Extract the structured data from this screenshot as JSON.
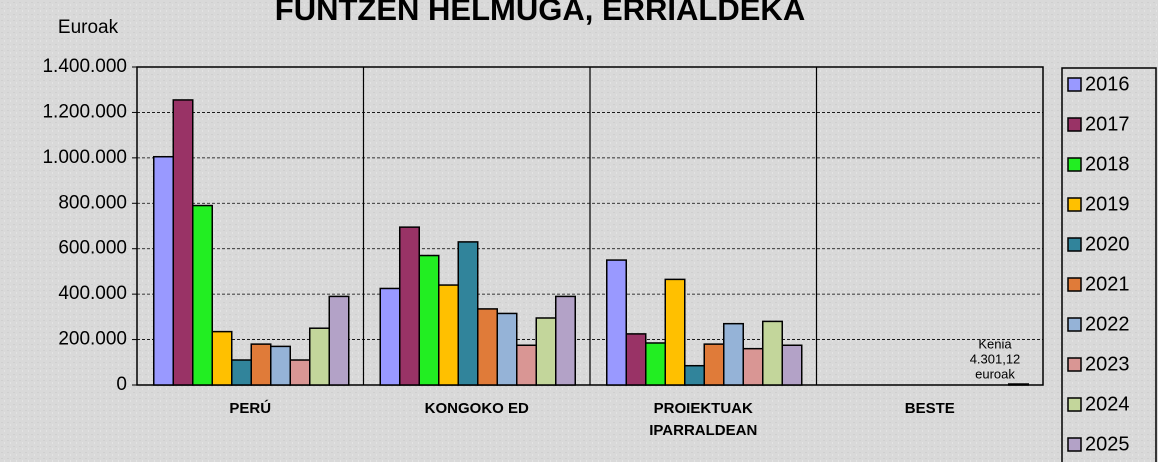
{
  "chart_data": {
    "type": "bar",
    "title": "FUNTZEN HELMUGA, ERRIALDEKA",
    "y_label": "Euroak",
    "categories": [
      "PERÚ",
      "KONGOKO ED",
      "PROIEKTUAK IPARRALDEAN",
      "BESTE"
    ],
    "series": [
      {
        "name": "2016",
        "color": "#9999ff",
        "values": [
          1005000,
          425000,
          550000,
          0
        ]
      },
      {
        "name": "2017",
        "color": "#993366",
        "values": [
          1255000,
          695000,
          225000,
          0
        ]
      },
      {
        "name": "2018",
        "color": "#22ee22",
        "values": [
          790000,
          570000,
          185000,
          0
        ]
      },
      {
        "name": "2019",
        "color": "#ffc000",
        "values": [
          235000,
          440000,
          465000,
          0
        ]
      },
      {
        "name": "2020",
        "color": "#31849b",
        "values": [
          110000,
          630000,
          85000,
          0
        ]
      },
      {
        "name": "2021",
        "color": "#e07b39",
        "values": [
          180000,
          335000,
          180000,
          0
        ]
      },
      {
        "name": "2022",
        "color": "#95b3d7",
        "values": [
          170000,
          315000,
          270000,
          0
        ]
      },
      {
        "name": "2023",
        "color": "#d99694",
        "values": [
          110000,
          175000,
          160000,
          0
        ]
      },
      {
        "name": "2024",
        "color": "#c3d69b",
        "values": [
          250000,
          295000,
          280000,
          0
        ]
      },
      {
        "name": "2025",
        "color": "#b3a2c7",
        "values": [
          390000,
          390000,
          175000,
          4301.12
        ]
      }
    ],
    "annotation": [
      "Kenia",
      "4.301,12",
      "euroak"
    ],
    "ylim": [
      0,
      1400000
    ],
    "yticks": [
      0,
      {
        "value": 200000,
        "label": "200.000"
      },
      {
        "value": 400000,
        "label": "400.000"
      },
      {
        "value": 600000,
        "label": "600.000"
      },
      {
        "value": 800000,
        "label": "800.000"
      },
      {
        "value": 1000000,
        "label": "1.000.000"
      },
      {
        "value": 1200000,
        "label": "1.200.000"
      },
      {
        "value": 1400000,
        "label": "1.400.000"
      }
    ],
    "grid": true,
    "legend": "right"
  }
}
